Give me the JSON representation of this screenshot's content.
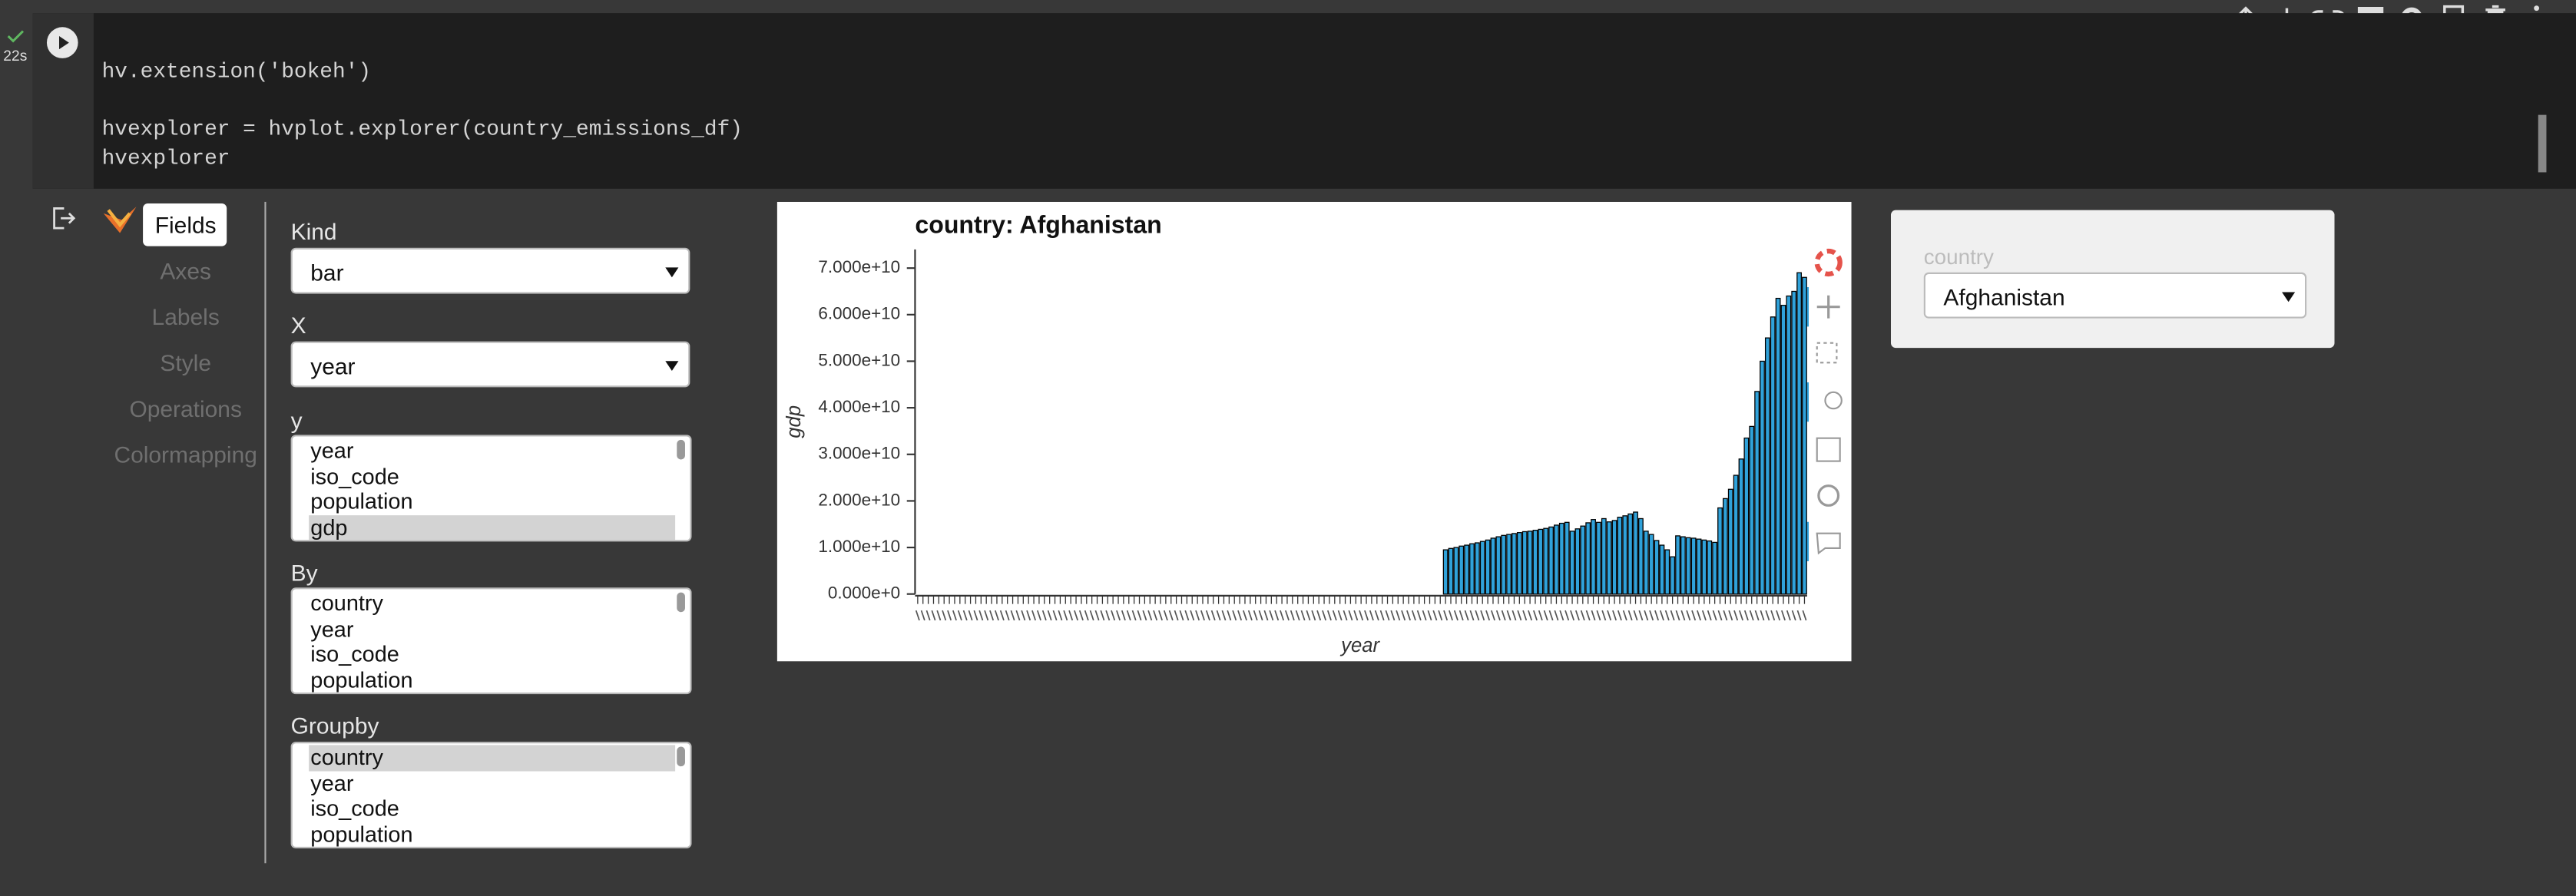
{
  "notebook": {
    "status": "22s",
    "code": [
      "hv.extension('bokeh')",
      "hvexplorer = hvplot.explorer(country_emissions_df)",
      "hvexplorer"
    ]
  },
  "explorer": {
    "tabs": [
      "Fields",
      "Axes",
      "Labels",
      "Style",
      "Operations",
      "Colormapping"
    ],
    "kind": {
      "label": "Kind",
      "value": "bar"
    },
    "x": {
      "label": "X",
      "value": "year"
    },
    "y": {
      "label": "y",
      "options": [
        "year",
        "iso_code",
        "population",
        "gdp"
      ],
      "selected": 3
    },
    "by": {
      "label": "By",
      "options": [
        "country",
        "year",
        "iso_code",
        "population"
      ]
    },
    "groupby": {
      "label": "Groupby",
      "options": [
        "country",
        "year",
        "iso_code",
        "population"
      ],
      "selected": 0
    },
    "country": {
      "label": "country",
      "value": "Afghanistan"
    }
  },
  "chart_data": {
    "type": "bar",
    "title": "country: Afghanistan",
    "xlabel": "year",
    "ylabel": "gdp",
    "categories": [
      null,
      null,
      null,
      null,
      null,
      null,
      null,
      null,
      null,
      null,
      null,
      null,
      null,
      null,
      null,
      null,
      null,
      null,
      null,
      null,
      null,
      null,
      null,
      null,
      null,
      null,
      null,
      null,
      null,
      null,
      null,
      null,
      null,
      null,
      null,
      null,
      null,
      null,
      null,
      null,
      null,
      null,
      null,
      null,
      null,
      null,
      null,
      null,
      null,
      null,
      null,
      null,
      null,
      null,
      null,
      null,
      null,
      null,
      null,
      null,
      null,
      null,
      null,
      null,
      null,
      null,
      null,
      null,
      null,
      null,
      null,
      null,
      null,
      null,
      null,
      null,
      null,
      null,
      null,
      null,
      null,
      null,
      null,
      null,
      null,
      null,
      null,
      null,
      null,
      null,
      null,
      null,
      null,
      null,
      null,
      null,
      null,
      null,
      null,
      null,
      null,
      null,
      null,
      null,
      null,
      null,
      null,
      null,
      null,
      null,
      null,
      null,
      null,
      null,
      null,
      null,
      null,
      null,
      null,
      null,
      null,
      null,
      null,
      null,
      null,
      null,
      null,
      null,
      null,
      null,
      null,
      null,
      null,
      null,
      null,
      null,
      null,
      null,
      null,
      null,
      null,
      null,
      null,
      null,
      null,
      null,
      null,
      null,
      null,
      null,
      null,
      null,
      null,
      null,
      null,
      null,
      null,
      null,
      null,
      null,
      null,
      null,
      null,
      null,
      null,
      null,
      null,
      null,
      null
    ],
    "values": [
      null,
      null,
      null,
      null,
      null,
      null,
      null,
      null,
      null,
      null,
      null,
      null,
      null,
      null,
      null,
      null,
      null,
      null,
      null,
      null,
      null,
      null,
      null,
      null,
      null,
      null,
      null,
      null,
      null,
      null,
      null,
      null,
      null,
      null,
      null,
      null,
      null,
      null,
      null,
      null,
      null,
      null,
      null,
      null,
      null,
      null,
      null,
      null,
      null,
      null,
      null,
      null,
      null,
      null,
      null,
      null,
      null,
      null,
      null,
      null,
      null,
      null,
      null,
      null,
      null,
      null,
      null,
      null,
      null,
      null,
      null,
      null,
      null,
      null,
      null,
      null,
      null,
      null,
      null,
      null,
      null,
      null,
      null,
      null,
      null,
      null,
      null,
      null,
      null,
      null,
      null,
      null,
      null,
      null,
      null,
      null,
      null,
      null,
      null,
      null,
      9500000000.0,
      9800000000.0,
      10000000000.0,
      10300000000.0,
      10500000000.0,
      10800000000.0,
      11000000000.0,
      11300000000.0,
      11600000000.0,
      12000000000.0,
      12300000000.0,
      12600000000.0,
      12800000000.0,
      13000000000.0,
      13200000000.0,
      13400000000.0,
      13500000000.0,
      13700000000.0,
      13900000000.0,
      14100000000.0,
      14400000000.0,
      14800000000.0,
      15200000000.0,
      15400000000.0,
      13500000000.0,
      14000000000.0,
      14600000000.0,
      15300000000.0,
      16000000000.0,
      15400000000.0,
      16200000000.0,
      15500000000.0,
      15800000000.0,
      16500000000.0,
      16800000000.0,
      17200000000.0,
      17600000000.0,
      16200000000.0,
      13500000000.0,
      12800000000.0,
      11500000000.0,
      10500000000.0,
      9500000000.0,
      8000000000.0,
      12500000000.0,
      12300000000.0,
      12100000000.0,
      12000000000.0,
      11800000000.0,
      11600000000.0,
      11400000000.0,
      11100000000.0,
      18500000000.0,
      20500000000.0,
      22500000000.0,
      25500000000.0,
      29000000000.0,
      33500000000.0,
      36000000000.0,
      43500000000.0,
      50000000000.0,
      55000000000.0,
      59500000000.0,
      63500000000.0,
      62000000000.0,
      64000000000.0,
      65000000000.0,
      69000000000.0,
      68000000000.0
    ],
    "color": "#30a2da",
    "ylim": [
      0,
      74000000000.0
    ],
    "yticks": [
      {
        "value": 0,
        "label": "0.000e+0"
      },
      {
        "value": 10000000000.0,
        "label": "1.000e+10"
      },
      {
        "value": 20000000000.0,
        "label": "2.000e+10"
      },
      {
        "value": 30000000000.0,
        "label": "3.000e+10"
      },
      {
        "value": 40000000000.0,
        "label": "4.000e+10"
      },
      {
        "value": 50000000000.0,
        "label": "5.000e+10"
      },
      {
        "value": 60000000000.0,
        "label": "6.000e+10"
      },
      {
        "value": 70000000000.0,
        "label": "7.000e+10"
      }
    ]
  }
}
